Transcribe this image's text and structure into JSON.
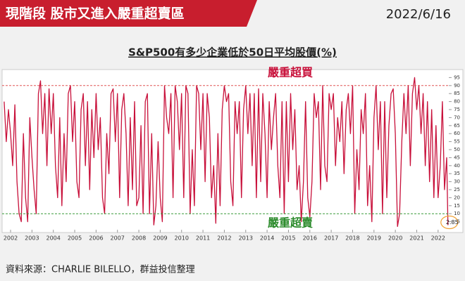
{
  "header": {
    "title": "現階段 股市又進入嚴重超賣區",
    "date": "2022/6/16"
  },
  "chart_data": {
    "type": "line",
    "title": "S&P500有多少企業低於50日平均股價(%)",
    "x": [
      2001.7,
      2001.8,
      2001.9,
      2002.0,
      2002.1,
      2002.2,
      2002.3,
      2002.4,
      2002.5,
      2002.6,
      2002.7,
      2002.8,
      2002.9,
      2003.0,
      2003.1,
      2003.2,
      2003.3,
      2003.4,
      2003.5,
      2003.6,
      2003.7,
      2003.8,
      2003.9,
      2004.0,
      2004.1,
      2004.2,
      2004.3,
      2004.4,
      2004.5,
      2004.6,
      2004.7,
      2004.8,
      2004.9,
      2005.0,
      2005.1,
      2005.2,
      2005.3,
      2005.4,
      2005.5,
      2005.6,
      2005.7,
      2005.8,
      2005.9,
      2006.0,
      2006.1,
      2006.2,
      2006.3,
      2006.4,
      2006.5,
      2006.6,
      2006.7,
      2006.8,
      2006.9,
      2007.0,
      2007.1,
      2007.2,
      2007.3,
      2007.4,
      2007.5,
      2007.6,
      2007.7,
      2007.8,
      2007.9,
      2008.0,
      2008.1,
      2008.2,
      2008.3,
      2008.4,
      2008.5,
      2008.6,
      2008.7,
      2008.8,
      2008.9,
      2009.0,
      2009.1,
      2009.2,
      2009.3,
      2009.4,
      2009.5,
      2009.6,
      2009.7,
      2009.8,
      2009.9,
      2010.0,
      2010.1,
      2010.2,
      2010.3,
      2010.4,
      2010.5,
      2010.6,
      2010.7,
      2010.8,
      2010.9,
      2011.0,
      2011.1,
      2011.2,
      2011.3,
      2011.4,
      2011.5,
      2011.6,
      2011.7,
      2011.8,
      2011.9,
      2012.0,
      2012.1,
      2012.2,
      2012.3,
      2012.4,
      2012.5,
      2012.6,
      2012.7,
      2012.8,
      2012.9,
      2013.0,
      2013.1,
      2013.2,
      2013.3,
      2013.4,
      2013.5,
      2013.6,
      2013.7,
      2013.8,
      2013.9,
      2014.0,
      2014.1,
      2014.2,
      2014.3,
      2014.4,
      2014.5,
      2014.6,
      2014.7,
      2014.8,
      2014.9,
      2015.0,
      2015.1,
      2015.2,
      2015.3,
      2015.4,
      2015.5,
      2015.6,
      2015.7,
      2015.8,
      2015.9,
      2016.0,
      2016.1,
      2016.2,
      2016.3,
      2016.4,
      2016.5,
      2016.6,
      2016.7,
      2016.8,
      2016.9,
      2017.0,
      2017.1,
      2017.2,
      2017.3,
      2017.4,
      2017.5,
      2017.6,
      2017.7,
      2017.8,
      2017.9,
      2018.0,
      2018.1,
      2018.2,
      2018.3,
      2018.4,
      2018.5,
      2018.6,
      2018.7,
      2018.8,
      2018.9,
      2019.0,
      2019.1,
      2019.2,
      2019.3,
      2019.4,
      2019.5,
      2019.6,
      2019.7,
      2019.8,
      2019.9,
      2020.0,
      2020.1,
      2020.2,
      2020.3,
      2020.4,
      2020.5,
      2020.6,
      2020.7,
      2020.8,
      2020.9,
      2021.0,
      2021.1,
      2021.2,
      2021.3,
      2021.4,
      2021.5,
      2021.6,
      2021.7,
      2021.8,
      2021.9,
      2022.0,
      2022.1,
      2022.2,
      2022.3,
      2022.4,
      2022.46
    ],
    "series": [
      {
        "color": "#c8103a",
        "values": [
          80,
          55,
          75,
          60,
          40,
          78,
          30,
          10,
          5,
          60,
          20,
          5,
          70,
          45,
          25,
          10,
          85,
          93,
          60,
          85,
          40,
          88,
          60,
          85,
          40,
          20,
          70,
          15,
          60,
          30,
          85,
          90,
          55,
          80,
          30,
          20,
          75,
          85,
          40,
          80,
          25,
          75,
          45,
          85,
          50,
          70,
          20,
          10,
          60,
          35,
          85,
          88,
          55,
          85,
          20,
          75,
          85,
          60,
          15,
          70,
          25,
          80,
          15,
          20,
          65,
          10,
          80,
          85,
          10,
          60,
          3,
          15,
          55,
          20,
          5,
          90,
          70,
          60,
          85,
          20,
          90,
          80,
          50,
          85,
          20,
          90,
          85,
          10,
          50,
          15,
          90,
          85,
          50,
          85,
          30,
          85,
          70,
          20,
          40,
          4,
          60,
          15,
          75,
          90,
          80,
          85,
          30,
          15,
          80,
          60,
          80,
          20,
          75,
          90,
          60,
          85,
          40,
          85,
          20,
          88,
          30,
          85,
          60,
          20,
          80,
          50,
          70,
          85,
          40,
          20,
          80,
          10,
          80,
          30,
          85,
          50,
          75,
          25,
          40,
          5,
          30,
          80,
          20,
          8,
          30,
          85,
          70,
          80,
          25,
          90,
          40,
          30,
          85,
          75,
          85,
          40,
          70,
          55,
          80,
          35,
          75,
          85,
          60,
          90,
          10,
          50,
          25,
          75,
          60,
          85,
          15,
          40,
          5,
          70,
          90,
          50,
          80,
          10,
          80,
          20,
          65,
          85,
          88,
          60,
          2,
          10,
          55,
          85,
          60,
          90,
          40,
          85,
          95,
          75,
          90,
          60,
          85,
          40,
          80,
          30,
          75,
          20,
          65,
          20,
          40,
          80,
          25,
          45,
          2.85
        ]
      }
    ],
    "xlim": [
      2001.67,
      2022.5
    ],
    "xticks": [
      2002,
      2003,
      2004,
      2005,
      2006,
      2007,
      2008,
      2009,
      2010,
      2011,
      2012,
      2013,
      2014,
      2015,
      2016,
      2017,
      2018,
      2019,
      2020,
      2021,
      2022
    ],
    "ylim": [
      0,
      100
    ],
    "yticks": [
      5,
      10,
      15,
      20,
      25,
      30,
      35,
      40,
      45,
      50,
      55,
      60,
      65,
      70,
      75,
      80,
      85,
      90,
      95
    ],
    "hlines": [
      {
        "value": 90,
        "color": "#e05555",
        "label": "嚴重超買",
        "label_color": "#c8103a"
      },
      {
        "value": 10,
        "color": "#3a9a3a",
        "label": "嚴重超賣",
        "label_color": "#2a8a2a"
      }
    ]
  },
  "footer": {
    "source": "資料來源：CHARLIE BILELLO，群益投信整理"
  }
}
